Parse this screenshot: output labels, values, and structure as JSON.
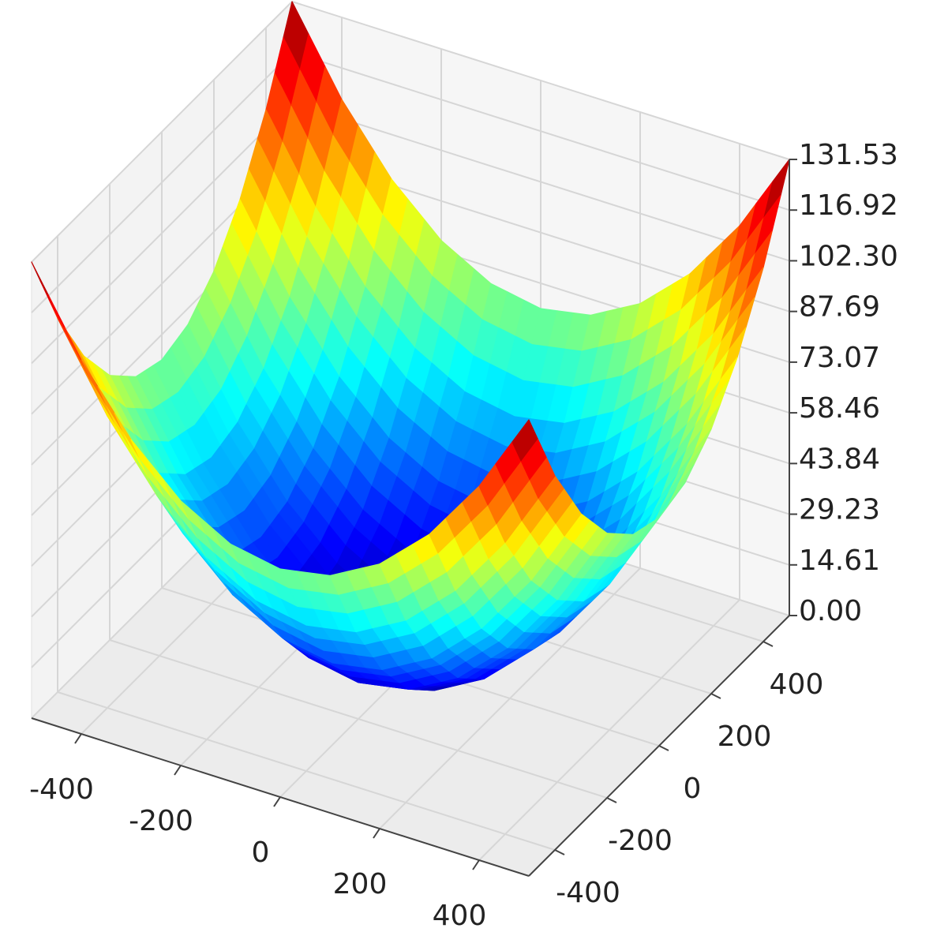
{
  "chart_data": {
    "type": "surface",
    "x": [
      -500,
      -400,
      -300,
      -200,
      -100,
      0,
      100,
      200,
      300,
      400,
      500
    ],
    "y": [
      -500,
      -400,
      -300,
      -200,
      -100,
      0,
      100,
      200,
      300,
      400,
      500
    ],
    "z": [
      [
        131.53,
        107.85,
        89.44,
        76.29,
        68.4,
        65.77,
        68.4,
        76.29,
        89.44,
        107.85,
        131.53
      ],
      [
        107.85,
        84.18,
        65.77,
        52.61,
        44.72,
        42.09,
        44.72,
        52.61,
        65.77,
        84.18,
        107.85
      ],
      [
        89.44,
        65.77,
        47.35,
        34.2,
        26.31,
        23.68,
        26.31,
        34.2,
        47.35,
        65.77,
        89.44
      ],
      [
        76.29,
        52.61,
        34.2,
        21.04,
        13.15,
        10.52,
        13.15,
        21.04,
        34.2,
        52.61,
        76.29
      ],
      [
        68.4,
        44.72,
        26.31,
        13.15,
        5.26,
        2.63,
        5.26,
        13.15,
        26.31,
        44.72,
        68.4
      ],
      [
        65.77,
        42.09,
        23.68,
        10.52,
        2.63,
        0,
        2.63,
        10.52,
        23.68,
        42.09,
        65.77
      ],
      [
        68.4,
        44.72,
        26.31,
        13.15,
        5.26,
        2.63,
        5.26,
        13.15,
        26.31,
        44.72,
        68.4
      ],
      [
        76.29,
        52.61,
        34.2,
        21.04,
        13.15,
        10.52,
        13.15,
        21.04,
        34.2,
        52.61,
        76.29
      ],
      [
        89.44,
        65.77,
        47.35,
        34.2,
        26.31,
        23.68,
        26.31,
        34.2,
        47.35,
        65.77,
        89.44
      ],
      [
        107.85,
        84.18,
        65.77,
        52.61,
        44.72,
        42.09,
        44.72,
        52.61,
        65.77,
        84.18,
        107.85
      ],
      [
        131.53,
        107.85,
        89.44,
        76.29,
        68.4,
        65.77,
        68.4,
        76.29,
        89.44,
        107.85,
        131.53
      ]
    ],
    "colormap": "jet",
    "xlim": [
      -500,
      500
    ],
    "ylim": [
      -500,
      500
    ],
    "zlim": [
      0,
      131.53
    ],
    "xticks": [
      -400,
      -200,
      0,
      200,
      400
    ],
    "yticks": [
      -400,
      -200,
      0,
      200,
      400
    ],
    "zticks": [
      {
        "value": 0,
        "label": "0.00"
      },
      14.61,
      29.23,
      43.84,
      58.46,
      73.07,
      87.69,
      {
        "value": 102.3,
        "label": "102.30"
      },
      116.92,
      131.53
    ],
    "grid": true
  }
}
